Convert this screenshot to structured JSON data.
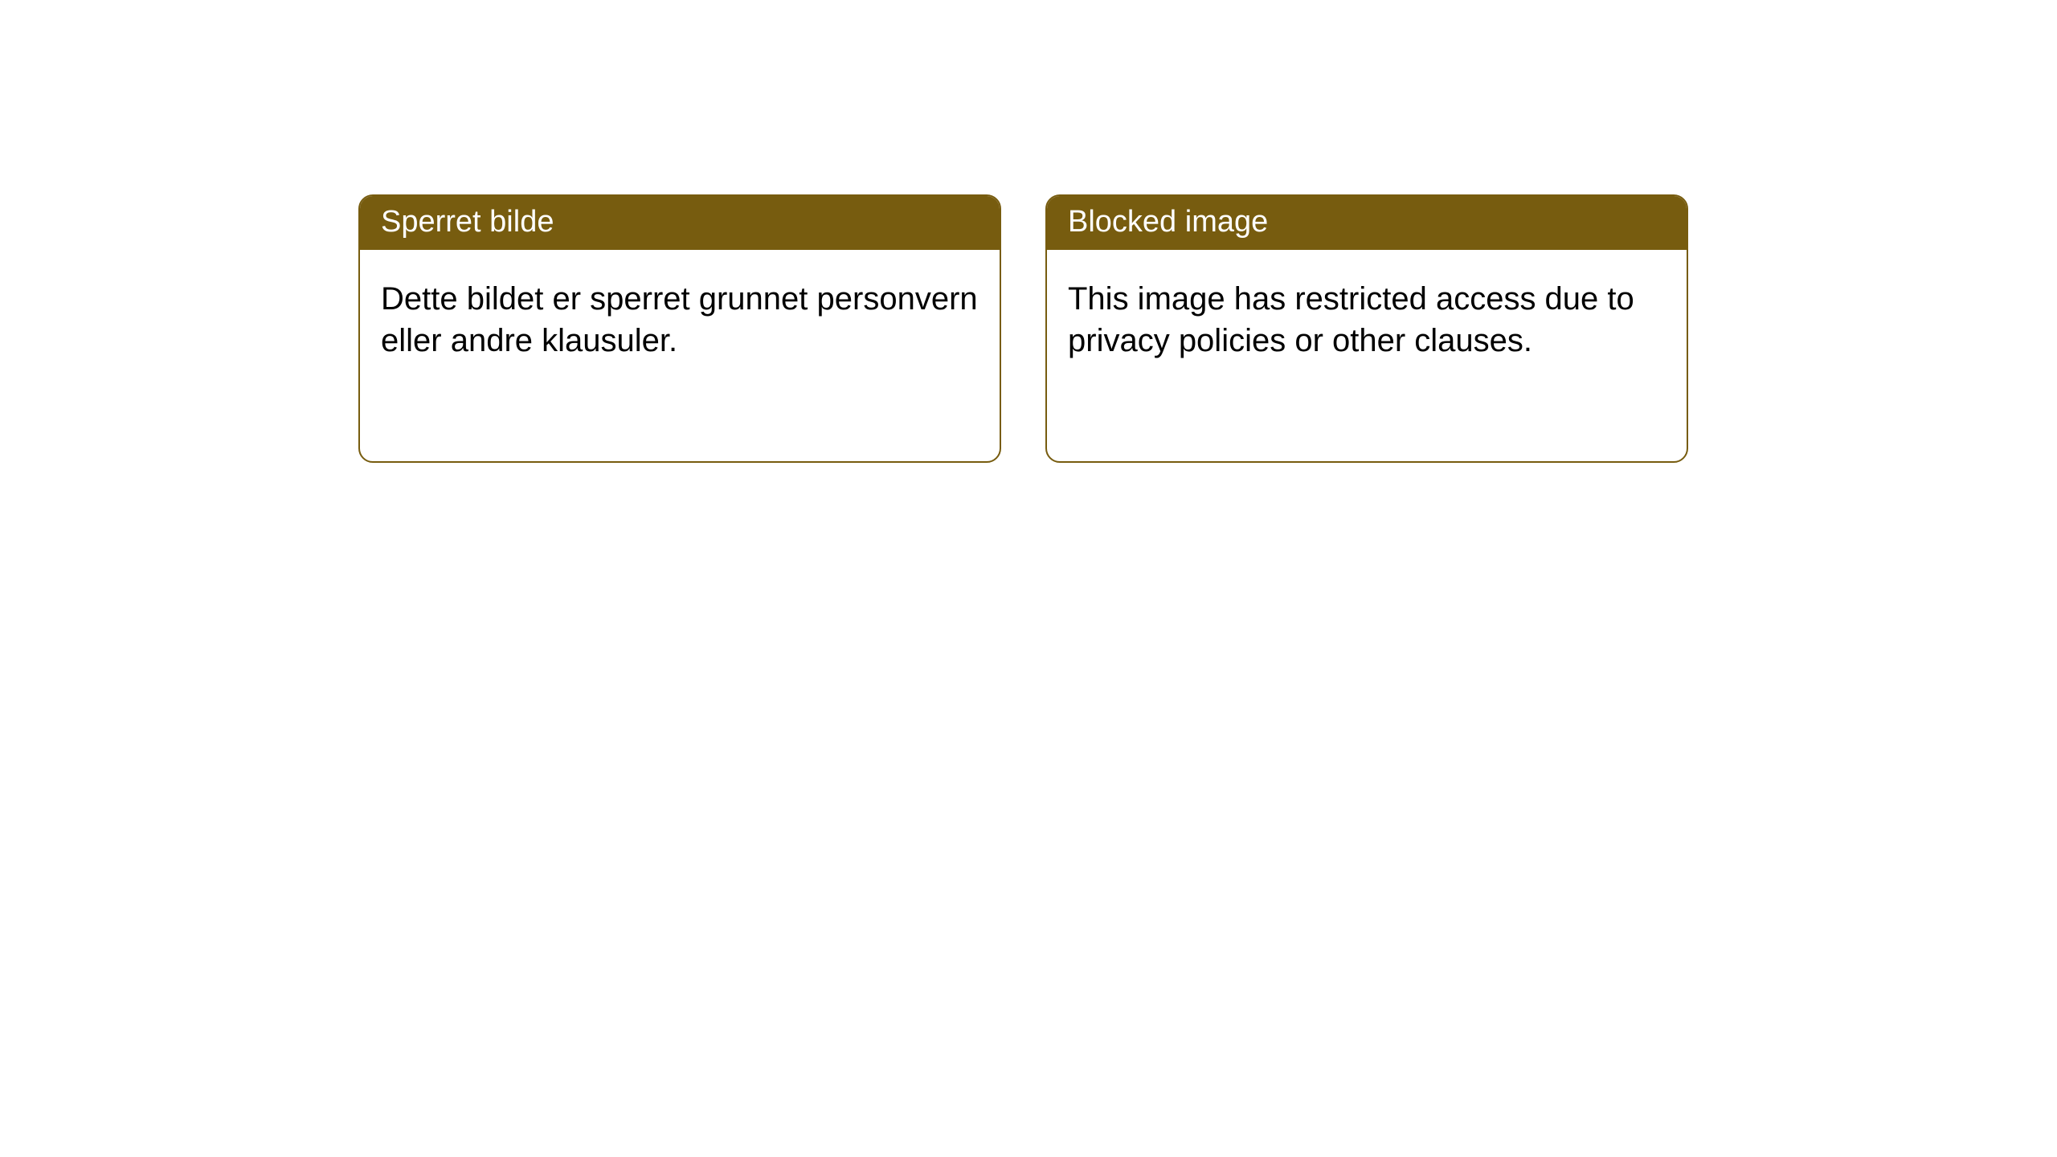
{
  "cards": [
    {
      "title": "Sperret bilde",
      "body": "Dette bildet er sperret grunnet personvern eller andre klausuler."
    },
    {
      "title": "Blocked image",
      "body": "This image has restricted access due to privacy policies or other clauses."
    }
  ],
  "styling": {
    "header_background": "#775c0f",
    "header_text_color": "#ffffff",
    "card_border_color": "#775c0f",
    "card_background": "#ffffff",
    "body_text_color": "#000000",
    "border_radius": 18,
    "header_fontsize": 38,
    "body_fontsize": 40,
    "page_background": "#ffffff"
  }
}
